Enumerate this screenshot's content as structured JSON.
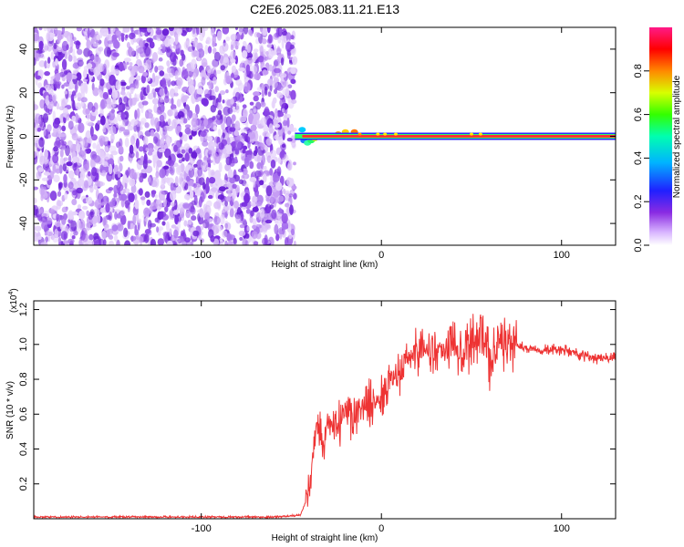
{
  "title": "C2E6.2025.083.11.21.E13",
  "colors": {
    "snr_line": "#ee3333",
    "spec_low": "#9b5cf0",
    "spec_high": "#ff0000",
    "band_core": "#ff3333"
  },
  "chart_data": [
    {
      "type": "heatmap",
      "title": "C2E6.2025.083.11.21.E13",
      "xlabel": "Height of straight line (km)",
      "ylabel": "Frequency (Hz)",
      "xlim": [
        -193,
        130
      ],
      "ylim": [
        -50,
        50
      ],
      "xticks": [
        -100,
        0,
        100
      ],
      "xtick_labels": [
        "-100",
        "0",
        "100"
      ],
      "yticks": [
        -40,
        -20,
        0,
        20,
        40
      ],
      "ytick_labels": [
        "-40",
        "-20",
        "0",
        "20",
        "40"
      ],
      "grid": false,
      "colorbar": {
        "label": "Normalized spectral amplitude",
        "range": [
          0,
          1
        ],
        "ticks": [
          0.0,
          0.2,
          0.4,
          0.6,
          0.8
        ],
        "tick_labels": [
          "0.0",
          "0.2",
          "0.4",
          "0.6",
          "0.8"
        ],
        "colormap": "rainbow (violet-blue-cyan-green-yellow-red)"
      },
      "regions": [
        {
          "description_x_range": [
            -193,
            -48
          ],
          "frequency_range": [
            -50,
            50
          ],
          "amplitude": 0.1
        },
        {
          "description_x_range": [
            -48,
            130
          ],
          "frequency_center": 0,
          "amplitude": 1.0
        }
      ]
    },
    {
      "type": "line",
      "xlabel": "Height of straight line (km)",
      "ylabel": "SNR (10 * v/v)",
      "y_multiplier_label": "(x10",
      "y_multiplier_exp": "4",
      "xlim": [
        -193,
        130
      ],
      "ylim": [
        0,
        1.25
      ],
      "xticks": [
        -100,
        0,
        100
      ],
      "xtick_labels": [
        "-100",
        "0",
        "100"
      ],
      "yticks": [
        0.2,
        0.4,
        0.6,
        0.8,
        1.0,
        1.2
      ],
      "ytick_labels": [
        "0.2",
        "0.4",
        "0.6",
        "0.8",
        "1.0",
        "1.2"
      ],
      "grid": false,
      "series": [
        {
          "x": [
            -193,
            -150,
            -100,
            -60,
            -45,
            -40,
            -37,
            -35,
            -32,
            -30,
            -25,
            -20,
            -15,
            -10,
            -5,
            0,
            5,
            10,
            15,
            20,
            25,
            30,
            40,
            50,
            55,
            60,
            65,
            70,
            75,
            80,
            90,
            100,
            110,
            120,
            130
          ],
          "y": [
            0.01,
            0.01,
            0.01,
            0.01,
            0.02,
            0.15,
            0.5,
            0.55,
            0.4,
            0.55,
            0.5,
            0.6,
            0.6,
            0.65,
            0.65,
            0.7,
            0.8,
            0.85,
            0.92,
            0.98,
            0.98,
            0.97,
            1.0,
            1.0,
            1.1,
            0.9,
            1.05,
            1.0,
            1.0,
            0.98,
            0.97,
            0.97,
            0.94,
            0.92,
            0.92
          ]
        }
      ]
    }
  ]
}
